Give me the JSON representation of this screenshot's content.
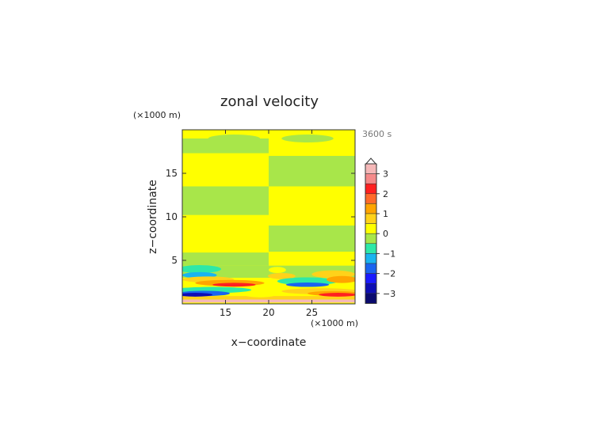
{
  "chart_data": {
    "type": "heatmap",
    "title": "zonal velocity",
    "time_label": "3600 s",
    "xlabel": "x−coordinate",
    "ylabel": "z−coordinate",
    "x_unit": "(×1000 m)",
    "y_unit": "(×1000 m)",
    "xlim": [
      10,
      30
    ],
    "ylim": [
      0,
      20
    ],
    "x_ticks": [
      15,
      20,
      25
    ],
    "x_tick_labels": [
      "15",
      "20",
      "25"
    ],
    "y_ticks": [
      5,
      10,
      15
    ],
    "y_tick_labels": [
      "5",
      "10",
      "15"
    ],
    "colorbar": {
      "tick_values": [
        3,
        2,
        1,
        0,
        -1,
        -2,
        -3
      ],
      "tick_labels": [
        "3",
        "2",
        "1",
        "0",
        "−1",
        "−2",
        "−3"
      ],
      "levels": [
        {
          "from": 3.5,
          "to": 3.0,
          "color": "#f5b8b8"
        },
        {
          "from": 3.0,
          "to": 2.5,
          "color": "#f58a8a"
        },
        {
          "from": 2.5,
          "to": 2.0,
          "color": "#ff2020"
        },
        {
          "from": 2.0,
          "to": 1.5,
          "color": "#ff6a2a"
        },
        {
          "from": 1.5,
          "to": 1.0,
          "color": "#ffa500"
        },
        {
          "from": 1.0,
          "to": 0.5,
          "color": "#ffd21a"
        },
        {
          "from": 0.5,
          "to": 0.0,
          "color": "#ffff00"
        },
        {
          "from": 0.0,
          "to": -0.5,
          "color": "#a8e64a"
        },
        {
          "from": -0.5,
          "to": -1.0,
          "color": "#2ee8a8"
        },
        {
          "from": -1.0,
          "to": -1.5,
          "color": "#1ab4f0"
        },
        {
          "from": -1.5,
          "to": -2.0,
          "color": "#1a64f0"
        },
        {
          "from": -2.0,
          "to": -2.5,
          "color": "#1a1aff"
        },
        {
          "from": -2.5,
          "to": -3.0,
          "color": "#0d0db4"
        },
        {
          "from": -3.0,
          "to": -3.5,
          "color": "#0a0a6e"
        }
      ]
    },
    "bands": [
      {
        "x": [
          10,
          20
        ],
        "z": [
          19.5,
          19.0
        ],
        "value": 0.3
      },
      {
        "x": [
          10,
          20
        ],
        "z": [
          19.0,
          17.3
        ],
        "value": -0.2
      },
      {
        "x": [
          10,
          20
        ],
        "z": [
          17.3,
          13.5
        ],
        "value": 0.3
      },
      {
        "x": [
          10,
          20
        ],
        "z": [
          13.5,
          10.2
        ],
        "value": -0.2
      },
      {
        "x": [
          10,
          20
        ],
        "z": [
          10.2,
          5.9
        ],
        "value": 0.3
      },
      {
        "x": [
          10,
          20
        ],
        "z": [
          5.9,
          4.4
        ],
        "value": -0.2
      },
      {
        "x": [
          20,
          30
        ],
        "z": [
          19.5,
          17.0
        ],
        "value": 0.3
      },
      {
        "x": [
          20,
          30
        ],
        "z": [
          17.0,
          13.5
        ],
        "value": -0.2
      },
      {
        "x": [
          20,
          30
        ],
        "z": [
          13.5,
          9.0
        ],
        "value": 0.3
      },
      {
        "x": [
          20,
          30
        ],
        "z": [
          9.0,
          6.0
        ],
        "value": -0.2
      },
      {
        "x": [
          20,
          30
        ],
        "z": [
          6.0,
          4.4
        ],
        "value": 0.3
      }
    ],
    "features": [
      {
        "shape": "ellipse",
        "x": 16.0,
        "z": 19.0,
        "rx": 3.0,
        "rz": 0.45,
        "value": -0.2
      },
      {
        "shape": "ellipse",
        "x": 24.5,
        "z": 19.0,
        "rx": 3.0,
        "rz": 0.45,
        "value": -0.2
      },
      {
        "shape": "ellipse",
        "x": 12.0,
        "z": 4.0,
        "rx": 2.5,
        "rz": 0.45,
        "value": -0.7
      },
      {
        "shape": "ellipse",
        "x": 12.0,
        "z": 3.3,
        "rx": 2.0,
        "rz": 0.35,
        "value": -1.2
      },
      {
        "shape": "ellipse",
        "x": 13.0,
        "z": 2.8,
        "rx": 3.0,
        "rz": 0.35,
        "value": 0.7
      },
      {
        "shape": "ellipse",
        "x": 15.5,
        "z": 2.4,
        "rx": 4.0,
        "rz": 0.35,
        "value": 1.2
      },
      {
        "shape": "ellipse",
        "x": 16.0,
        "z": 2.2,
        "rx": 2.5,
        "rz": 0.22,
        "value": 2.2
      },
      {
        "shape": "ellipse",
        "x": 13.5,
        "z": 1.6,
        "rx": 4.5,
        "rz": 0.35,
        "value": -0.7
      },
      {
        "shape": "ellipse",
        "x": 12.5,
        "z": 1.2,
        "rx": 3.0,
        "rz": 0.3,
        "value": -1.7
      },
      {
        "shape": "ellipse",
        "x": 11.5,
        "z": 1.05,
        "rx": 2.0,
        "rz": 0.22,
        "value": -2.7
      },
      {
        "shape": "ellipse",
        "x": 21.5,
        "z": 3.2,
        "rx": 1.6,
        "rz": 0.35,
        "value": 0.7
      },
      {
        "shape": "ellipse",
        "x": 24.5,
        "z": 2.6,
        "rx": 3.5,
        "rz": 0.45,
        "value": -0.7
      },
      {
        "shape": "ellipse",
        "x": 24.5,
        "z": 2.2,
        "rx": 2.5,
        "rz": 0.25,
        "value": -1.7
      },
      {
        "shape": "ellipse",
        "x": 27.5,
        "z": 3.4,
        "rx": 2.5,
        "rz": 0.45,
        "value": 0.7
      },
      {
        "shape": "ellipse",
        "x": 28.5,
        "z": 2.8,
        "rx": 1.8,
        "rz": 0.4,
        "value": 1.2
      },
      {
        "shape": "ellipse",
        "x": 26.0,
        "z": 1.45,
        "rx": 4.5,
        "rz": 0.35,
        "value": 0.7
      },
      {
        "shape": "ellipse",
        "x": 27.5,
        "z": 1.2,
        "rx": 3.0,
        "rz": 0.28,
        "value": 1.2
      },
      {
        "shape": "ellipse",
        "x": 28.0,
        "z": 1.05,
        "rx": 2.2,
        "rz": 0.22,
        "value": 2.2
      },
      {
        "shape": "ellipse",
        "x": 19.0,
        "z": 1.15,
        "rx": 2.0,
        "rz": 0.4,
        "value": 0.3
      },
      {
        "shape": "ellipse",
        "x": 21.0,
        "z": 3.9,
        "rx": 1.0,
        "rz": 0.35,
        "value": 0.3
      }
    ]
  }
}
